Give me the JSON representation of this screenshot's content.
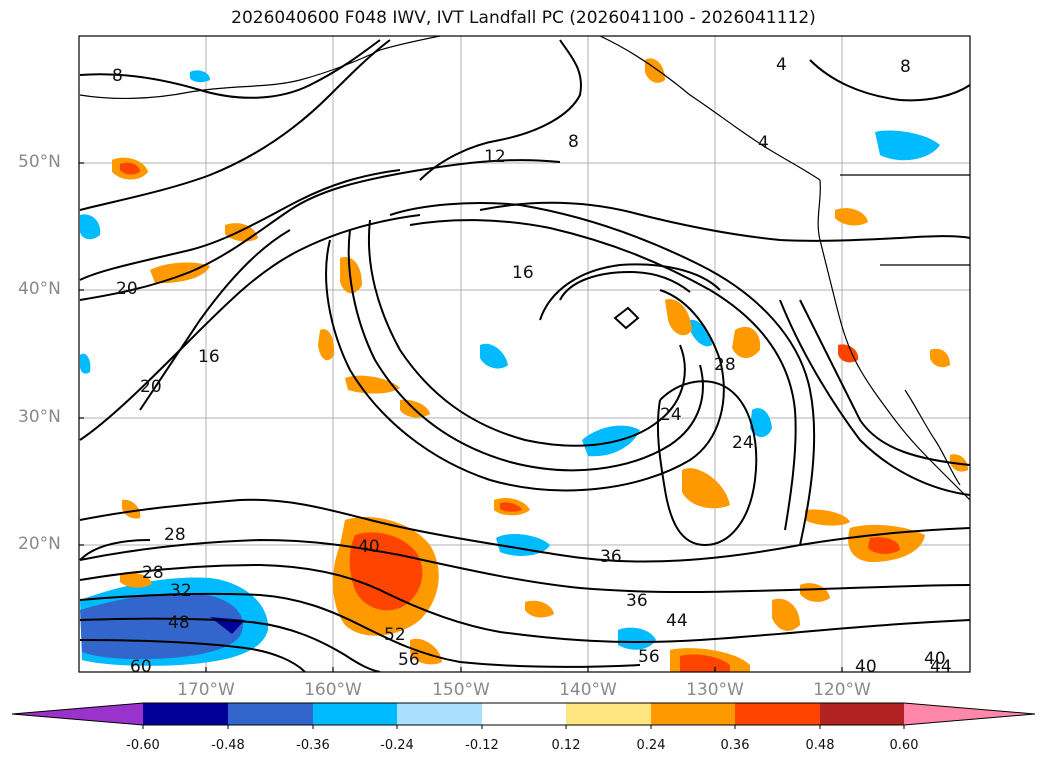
{
  "title": "2026040600 F048 IWV, IVT Landfall PC (2026041100 - 2026041112)",
  "map": {
    "lat_labels": [
      "50°N",
      "40°N",
      "30°N",
      "20°N"
    ],
    "lon_labels": [
      "170°W",
      "160°W",
      "150°W",
      "140°W",
      "130°W",
      "120°W"
    ],
    "lat_ticks": [
      50,
      40,
      30,
      20
    ],
    "lon_ticks": [
      -170,
      -160,
      -150,
      -140,
      -130,
      -120
    ],
    "lon_range": [
      -180,
      -110
    ],
    "lat_range": [
      10,
      60
    ],
    "grid": true,
    "iwv_contour_labels": [
      "8",
      "4",
      "8",
      "4",
      "8",
      "12",
      "16",
      "20",
      "16",
      "20",
      "24",
      "24",
      "28",
      "28",
      "28",
      "32",
      "36",
      "36",
      "40",
      "44",
      "48",
      "52",
      "56",
      "56",
      "60",
      "40",
      "40",
      "44"
    ],
    "colors": {
      "land_outline": "#000000",
      "grid": "#b0b0b0"
    }
  },
  "colorbar": {
    "labels": [
      "-0.60",
      "-0.48",
      "-0.36",
      "-0.24",
      "-0.12",
      "0.12",
      "0.24",
      "0.36",
      "0.48",
      "0.60"
    ],
    "colors": [
      "#9933cc",
      "#000099",
      "#3366cc",
      "#00bbff",
      "#aae0ff",
      "#ffffff",
      "#ffe680",
      "#ff9900",
      "#ff4400",
      "#b22222",
      "#ff88aa"
    ]
  }
}
